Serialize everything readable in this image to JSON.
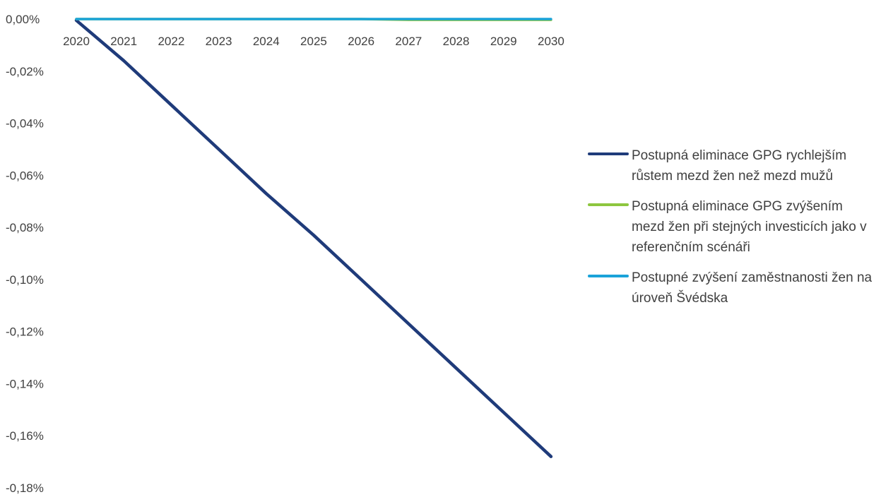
{
  "chart_data": {
    "type": "line",
    "title": "",
    "xlabel": "",
    "ylabel": "",
    "categories": [
      "2020",
      "2021",
      "2022",
      "2023",
      "2024",
      "2025",
      "2026",
      "2027",
      "2028",
      "2029",
      "2030"
    ],
    "ylim": [
      -0.18,
      0.0
    ],
    "yticks": [
      0.0,
      -0.02,
      -0.04,
      -0.06,
      -0.08,
      -0.1,
      -0.12,
      -0.14,
      -0.16,
      -0.18
    ],
    "ytick_labels": [
      "0,00%",
      "-0,02%",
      "-0,04%",
      "-0,06%",
      "-0,08%",
      "-0,10%",
      "-0,12%",
      "-0,14%",
      "-0,16%",
      "-0,18%"
    ],
    "grid": false,
    "legend_position": "right",
    "series": [
      {
        "name": "Postupná eliminace GPG rychlejším růstem mezd žen než mezd mužů",
        "color": "#1f3b7a",
        "values": [
          -0.0005,
          -0.016,
          -0.033,
          -0.05,
          -0.067,
          -0.083,
          -0.1,
          -0.117,
          -0.134,
          -0.151,
          -0.168
        ]
      },
      {
        "name": "Postupná eliminace GPG zvýšením mezd žen při stejných investicích jako v referenčním scénáři",
        "color": "#8dc63f",
        "values": [
          0.0,
          0.0,
          0.0,
          0.0,
          0.0,
          0.0,
          0.0,
          -0.0003,
          -0.0003,
          -0.0003,
          -0.0003
        ]
      },
      {
        "name": "Postupné zvýšení zaměstnanosti žen na úroveň Švédska",
        "color": "#1aa3d9",
        "values": [
          0.0,
          0.0,
          0.0,
          0.0,
          0.0,
          0.0,
          0.0,
          0.0,
          0.0,
          0.0,
          0.0
        ]
      }
    ]
  },
  "legend": {
    "items": [
      {
        "label": "Postupná eliminace GPG rychlejším růstem mezd žen než mezd mužů",
        "color": "#1f3b7a"
      },
      {
        "label": "Postupná eliminace GPG zvýšením mezd žen při stejných investicích jako v referenčním scénáři",
        "color": "#8dc63f"
      },
      {
        "label": "Postupné zvýšení zaměstnanosti žen na úroveň Švédska",
        "color": "#1aa3d9"
      }
    ]
  }
}
